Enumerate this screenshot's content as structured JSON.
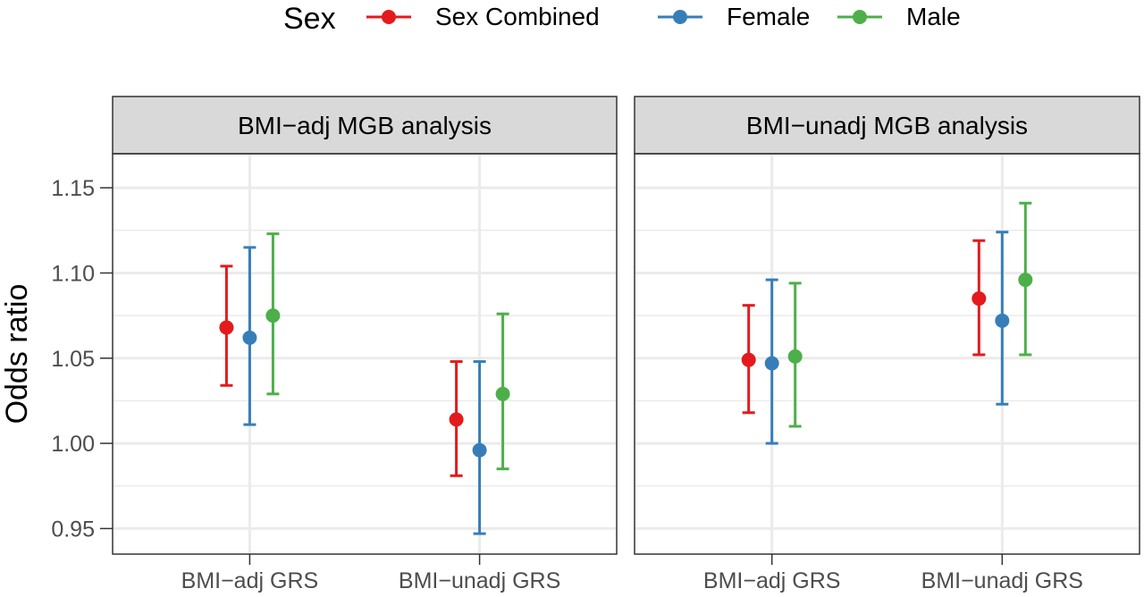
{
  "legend": {
    "title": "Sex",
    "items": [
      {
        "label": "Sex Combined",
        "color": "#E41A1C"
      },
      {
        "label": "Female",
        "color": "#377EB8"
      },
      {
        "label": "Male",
        "color": "#4DAF4A"
      }
    ]
  },
  "chart_data": {
    "type": "scatter",
    "ylabel": "Odds ratio",
    "ylim": [
      0.935,
      1.17
    ],
    "yticks": [
      "0.95",
      "1.00",
      "1.05",
      "1.10",
      "1.15"
    ],
    "grid": true,
    "legend_position": "top",
    "categories": [
      "BMI−adj GRS",
      "BMI−unadj GRS"
    ],
    "panels": [
      {
        "title": "BMI−adj MGB analysis",
        "series": [
          {
            "name": "Sex Combined",
            "points": [
              {
                "est": 1.068,
                "lo": 1.034,
                "hi": 1.104
              },
              {
                "est": 1.014,
                "lo": 0.981,
                "hi": 1.048
              }
            ]
          },
          {
            "name": "Female",
            "points": [
              {
                "est": 1.062,
                "lo": 1.011,
                "hi": 1.115
              },
              {
                "est": 0.996,
                "lo": 0.947,
                "hi": 1.048
              }
            ]
          },
          {
            "name": "Male",
            "points": [
              {
                "est": 1.075,
                "lo": 1.029,
                "hi": 1.123
              },
              {
                "est": 1.029,
                "lo": 0.985,
                "hi": 1.076
              }
            ]
          }
        ]
      },
      {
        "title": "BMI−unadj MGB analysis",
        "series": [
          {
            "name": "Sex Combined",
            "points": [
              {
                "est": 1.049,
                "lo": 1.018,
                "hi": 1.081
              },
              {
                "est": 1.085,
                "lo": 1.052,
                "hi": 1.119
              }
            ]
          },
          {
            "name": "Female",
            "points": [
              {
                "est": 1.047,
                "lo": 1.0,
                "hi": 1.096
              },
              {
                "est": 1.072,
                "lo": 1.023,
                "hi": 1.124
              }
            ]
          },
          {
            "name": "Male",
            "points": [
              {
                "est": 1.051,
                "lo": 1.01,
                "hi": 1.094
              },
              {
                "est": 1.096,
                "lo": 1.052,
                "hi": 1.141
              }
            ]
          }
        ]
      }
    ]
  }
}
